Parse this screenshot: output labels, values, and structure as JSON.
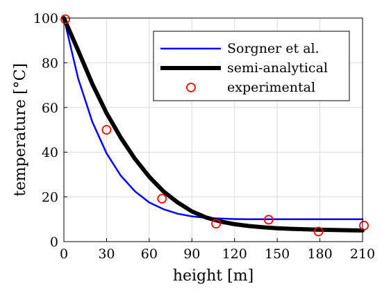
{
  "chart_data": {
    "type": "line",
    "title": "",
    "xlabel": "height [m]",
    "ylabel": "temperature [°C]",
    "xlim": [
      0,
      210
    ],
    "ylim": [
      0,
      100
    ],
    "xticks": [
      0,
      30,
      60,
      90,
      120,
      150,
      180,
      210
    ],
    "yticks": [
      0,
      20,
      40,
      60,
      80,
      100
    ],
    "grid": true,
    "legend_position": "top-right",
    "series": [
      {
        "name": "Sorgner et al.",
        "kind": "line",
        "color": "#0000ff",
        "x": [
          0,
          10,
          20,
          30,
          40,
          50,
          60,
          70,
          80,
          90,
          100,
          110,
          120,
          130,
          140,
          150,
          160,
          170,
          180,
          190,
          200,
          210
        ],
        "y": [
          100,
          73.0,
          53.5,
          39.5,
          29.5,
          22.5,
          17.5,
          14.5,
          12.5,
          11.3,
          10.6,
          10.3,
          10.1,
          10.0,
          10.0,
          10.0,
          10.0,
          10.0,
          10.0,
          10.0,
          10.0,
          10.0
        ]
      },
      {
        "name": "semi-analytical",
        "kind": "line",
        "color": "#000000",
        "x": [
          0,
          10,
          20,
          30,
          40,
          50,
          60,
          70,
          80,
          90,
          100,
          110,
          120,
          130,
          140,
          150,
          160,
          170,
          180,
          190,
          200,
          210
        ],
        "y": [
          100,
          85.5,
          70.5,
          57.5,
          46.5,
          37.0,
          29.0,
          22.5,
          17.5,
          13.5,
          10.8,
          9.0,
          7.8,
          7.0,
          6.4,
          6.0,
          5.7,
          5.5,
          5.3,
          5.2,
          5.1,
          5.0
        ]
      },
      {
        "name": "experimental",
        "kind": "scatter",
        "color": "#ff0000",
        "x": [
          1,
          30,
          69,
          107,
          144,
          179,
          211
        ],
        "y": [
          99.5,
          50,
          19.2,
          8,
          9.8,
          4.5,
          7.2
        ]
      }
    ]
  }
}
